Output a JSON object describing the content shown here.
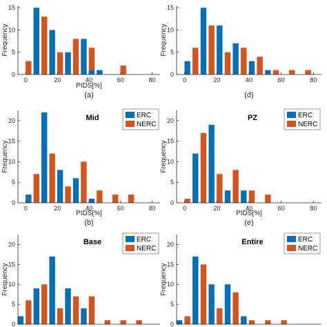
{
  "colors": {
    "erc": "#0072BD",
    "nerc": "#D95319",
    "axis": "#262626"
  },
  "chart_data": [
    {
      "type": "bar",
      "panel_label": "(a)",
      "title": "",
      "xlabel": "PIDS[%]",
      "ylabel": "Frequency",
      "xlim": [
        -5,
        85
      ],
      "ylim": [
        0,
        15.5
      ],
      "xticks": [
        0,
        20,
        40,
        60,
        80
      ],
      "yticks": [
        0,
        5,
        10,
        15
      ],
      "legend": null,
      "series": [
        {
          "name": "ERC",
          "x": [
            6.7,
            16.7,
            26.7,
            36.7,
            46.7
          ],
          "values": [
            15,
            10,
            5,
            8,
            1
          ]
        },
        {
          "name": "NERC",
          "x": [
            1.7,
            11.7,
            21.7,
            31.7,
            41.7,
            51.7,
            61.7
          ],
          "values": [
            3,
            13,
            5,
            8,
            6,
            0,
            2
          ]
        },
        {
          "name": "ERC",
          "x": [
            41.7
          ],
          "values": [
            1
          ]
        }
      ]
    },
    {
      "type": "bar",
      "panel_label": "(d)",
      "title": "",
      "xlabel": "",
      "ylabel": "Frequency",
      "xlim": [
        -5,
        85
      ],
      "ylim": [
        0,
        15.5
      ],
      "xticks": [
        0,
        20,
        40,
        60,
        80
      ],
      "yticks": [
        0,
        5,
        10,
        15
      ],
      "legend": null,
      "series": [
        {
          "name": "ERC",
          "x": [
            1.7,
            11.7,
            21.7,
            31.7,
            41.7,
            51.7
          ],
          "values": [
            3,
            15,
            11,
            7,
            3,
            1
          ]
        },
        {
          "name": "NERC",
          "x": [
            6.7,
            16.7,
            26.7,
            36.7,
            46.7,
            56.7,
            66.7,
            76.7
          ],
          "values": [
            6,
            11,
            5,
            6,
            4,
            1,
            1,
            1
          ]
        }
      ]
    },
    {
      "type": "bar",
      "panel_label": "(b)",
      "title": "Mid",
      "xlabel": "PIDS[%]",
      "ylabel": "Frequency",
      "xlim": [
        -5,
        85
      ],
      "ylim": [
        0,
        22.5
      ],
      "xticks": [
        0,
        20,
        40,
        60,
        80
      ],
      "yticks": [
        0,
        5,
        10,
        15,
        20
      ],
      "legend": {
        "position": "top-right",
        "entries": [
          "ERC",
          "NERC"
        ]
      },
      "series": [
        {
          "name": "ERC",
          "x": [
            1.7,
            11.7,
            21.7,
            31.7,
            41.7
          ],
          "values": [
            2,
            22,
            8,
            6,
            1
          ]
        },
        {
          "name": "NERC",
          "x": [
            6.7,
            16.7,
            26.7,
            36.7,
            46.7,
            56.7,
            66.7
          ],
          "values": [
            7,
            12,
            4,
            10,
            3,
            2,
            2
          ]
        },
        {
          "name": "ERC",
          "x": [
            6.7
          ],
          "values": [
            0
          ]
        }
      ]
    },
    {
      "type": "bar",
      "panel_label": "(e)",
      "title": "PZ",
      "xlabel": "PIDS[%]",
      "ylabel": "Frequency",
      "xlim": [
        -5,
        85
      ],
      "ylim": [
        0,
        22.5
      ],
      "xticks": [
        0,
        20,
        40,
        60,
        80
      ],
      "yticks": [
        0,
        5,
        10,
        15,
        20
      ],
      "legend": {
        "position": "top-right",
        "entries": [
          "ERC",
          "NERC"
        ]
      },
      "series": [
        {
          "name": "ERC",
          "x": [
            6.7,
            16.7,
            26.7,
            36.7,
            46.7
          ],
          "values": [
            12,
            19,
            3,
            3,
            0
          ]
        },
        {
          "name": "NERC",
          "x": [
            1.7,
            11.7,
            21.7,
            31.7,
            41.7,
            51.7
          ],
          "values": [
            1,
            17,
            7,
            8,
            3,
            2
          ]
        }
      ]
    },
    {
      "type": "bar",
      "panel_label": "",
      "title": "Base",
      "xlabel": "",
      "ylabel": "Frequency",
      "xlim": [
        -5,
        85
      ],
      "ylim": [
        0,
        22.5
      ],
      "xticks": [],
      "yticks": [
        0,
        5,
        10,
        15,
        20
      ],
      "legend": {
        "position": "top-right",
        "entries": [
          "ERC",
          "NERC"
        ]
      },
      "series": [
        {
          "name": "ERC",
          "x": [
            -3.3,
            6.7,
            16.7,
            26.7,
            36.7
          ],
          "values": [
            2,
            9,
            17,
            9,
            4
          ]
        },
        {
          "name": "NERC",
          "x": [
            1.7,
            11.7,
            21.7,
            31.7,
            41.7,
            51.7,
            61.7,
            71.7
          ],
          "values": [
            6,
            10,
            4,
            7,
            7,
            1,
            1,
            1
          ]
        }
      ]
    },
    {
      "type": "bar",
      "panel_label": "",
      "title": "Entire",
      "xlabel": "",
      "ylabel": "Frequency",
      "xlim": [
        -5,
        85
      ],
      "ylim": [
        0,
        22.5
      ],
      "xticks": [],
      "yticks": [
        0,
        5,
        10,
        15,
        20
      ],
      "legend": {
        "position": "top-right",
        "entries": [
          "ERC",
          "NERC"
        ]
      },
      "series": [
        {
          "name": "ERC",
          "x": [
            -3.3,
            6.7,
            16.7,
            26.7,
            36.7,
            46.7
          ],
          "values": [
            1,
            17,
            10,
            10,
            2,
            0
          ]
        },
        {
          "name": "NERC",
          "x": [
            1.7,
            11.7,
            21.7,
            31.7,
            41.7,
            51.7,
            61.7
          ],
          "values": [
            2,
            15,
            4,
            8,
            1,
            1,
            1
          ]
        }
      ]
    }
  ]
}
